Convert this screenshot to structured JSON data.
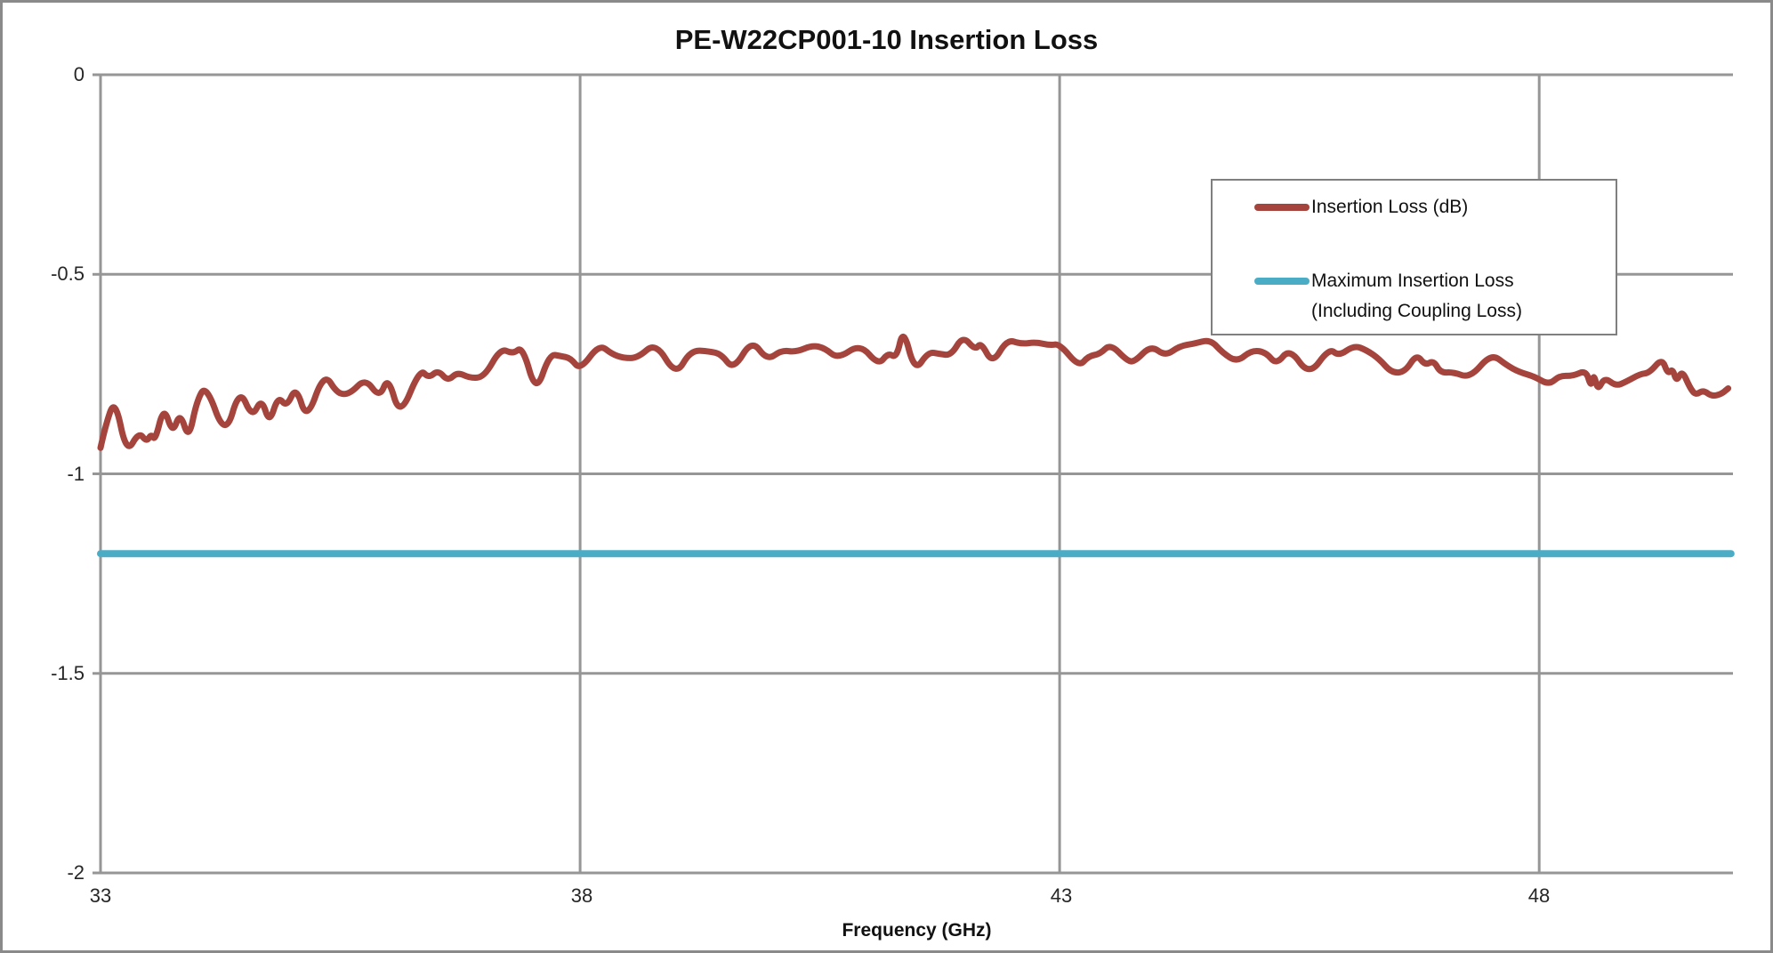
{
  "title": "PE-W22CP001-10 Insertion Loss",
  "x_axis": {
    "label": "Frequency (GHz)",
    "ticks": [
      "33",
      "38",
      "43",
      "48"
    ]
  },
  "y_axis": {
    "ticks": [
      "0",
      "-0.5",
      "-1",
      "-1.5",
      "-2"
    ]
  },
  "legend": {
    "entries": [
      {
        "lines": [
          "Insertion Loss (dB)"
        ]
      },
      {
        "lines": [
          "Maximum Insertion Loss",
          "(Including Coupling Loss)"
        ]
      }
    ]
  },
  "colors": {
    "insertion_loss_line": "#A5443C",
    "max_insertion_loss_line": "#4BACC6",
    "gridline": "#969696",
    "border": "#8A8A8A"
  },
  "chart_data": {
    "type": "line",
    "title": "PE-W22CP001-10 Insertion Loss",
    "xlabel": "Frequency (GHz)",
    "ylabel": "",
    "xlim": [
      33,
      50.02
    ],
    "ylim": [
      -2,
      0
    ],
    "xticks": [
      33,
      38,
      43,
      48
    ],
    "yticks": [
      0,
      -0.5,
      -1,
      -1.5,
      -2
    ],
    "grid": true,
    "legend_position": "upper right",
    "series": [
      {
        "name": "Insertion Loss (dB)",
        "color": "#A5443C",
        "points": [
          [
            33,
            -0.935
          ],
          [
            33.05,
            -0.88
          ],
          [
            33.15,
            -0.81
          ],
          [
            33.27,
            -0.95
          ],
          [
            33.4,
            -0.895
          ],
          [
            33.48,
            -0.92
          ],
          [
            33.53,
            -0.9
          ],
          [
            33.57,
            -0.917
          ],
          [
            33.66,
            -0.83
          ],
          [
            33.75,
            -0.9
          ],
          [
            33.83,
            -0.845
          ],
          [
            33.92,
            -0.915
          ],
          [
            34,
            -0.82
          ],
          [
            34.1,
            -0.775
          ],
          [
            34.3,
            -0.91
          ],
          [
            34.45,
            -0.785
          ],
          [
            34.58,
            -0.86
          ],
          [
            34.68,
            -0.81
          ],
          [
            34.76,
            -0.875
          ],
          [
            34.85,
            -0.805
          ],
          [
            34.94,
            -0.833
          ],
          [
            35.04,
            -0.78
          ],
          [
            35.15,
            -0.868
          ],
          [
            35.33,
            -0.745
          ],
          [
            35.47,
            -0.8
          ],
          [
            35.6,
            -0.8
          ],
          [
            35.76,
            -0.76
          ],
          [
            35.91,
            -0.81
          ],
          [
            36,
            -0.755
          ],
          [
            36.12,
            -0.86
          ],
          [
            36.33,
            -0.737
          ],
          [
            36.42,
            -0.76
          ],
          [
            36.52,
            -0.74
          ],
          [
            36.62,
            -0.768
          ],
          [
            36.72,
            -0.745
          ],
          [
            36.85,
            -0.76
          ],
          [
            37,
            -0.758
          ],
          [
            37.17,
            -0.685
          ],
          [
            37.3,
            -0.7
          ],
          [
            37.4,
            -0.68
          ],
          [
            37.54,
            -0.8
          ],
          [
            37.68,
            -0.7
          ],
          [
            37.8,
            -0.705
          ],
          [
            37.9,
            -0.71
          ],
          [
            38,
            -0.74
          ],
          [
            38.2,
            -0.675
          ],
          [
            38.33,
            -0.7
          ],
          [
            38.45,
            -0.71
          ],
          [
            38.6,
            -0.71
          ],
          [
            38.79,
            -0.67
          ],
          [
            39,
            -0.755
          ],
          [
            39.15,
            -0.69
          ],
          [
            39.35,
            -0.693
          ],
          [
            39.47,
            -0.7
          ],
          [
            39.6,
            -0.74
          ],
          [
            39.79,
            -0.663
          ],
          [
            39.95,
            -0.716
          ],
          [
            40.1,
            -0.69
          ],
          [
            40.25,
            -0.695
          ],
          [
            40.42,
            -0.678
          ],
          [
            40.55,
            -0.685
          ],
          [
            40.69,
            -0.712
          ],
          [
            40.92,
            -0.674
          ],
          [
            41.11,
            -0.728
          ],
          [
            41.21,
            -0.697
          ],
          [
            41.3,
            -0.71
          ],
          [
            41.37,
            -0.634
          ],
          [
            41.49,
            -0.745
          ],
          [
            41.63,
            -0.694
          ],
          [
            41.75,
            -0.7
          ],
          [
            41.87,
            -0.703
          ],
          [
            41.99,
            -0.654
          ],
          [
            42.12,
            -0.69
          ],
          [
            42.18,
            -0.67
          ],
          [
            42.3,
            -0.725
          ],
          [
            42.45,
            -0.663
          ],
          [
            42.6,
            -0.675
          ],
          [
            42.75,
            -0.67
          ],
          [
            42.9,
            -0.678
          ],
          [
            43,
            -0.674
          ],
          [
            43.2,
            -0.732
          ],
          [
            43.3,
            -0.705
          ],
          [
            43.42,
            -0.7
          ],
          [
            43.53,
            -0.674
          ],
          [
            43.7,
            -0.716
          ],
          [
            43.78,
            -0.72
          ],
          [
            43.95,
            -0.678
          ],
          [
            44.1,
            -0.705
          ],
          [
            44.25,
            -0.68
          ],
          [
            44.4,
            -0.674
          ],
          [
            44.57,
            -0.663
          ],
          [
            44.7,
            -0.697
          ],
          [
            44.85,
            -0.72
          ],
          [
            45,
            -0.69
          ],
          [
            45.15,
            -0.695
          ],
          [
            45.26,
            -0.727
          ],
          [
            45.4,
            -0.685
          ],
          [
            45.6,
            -0.755
          ],
          [
            45.81,
            -0.685
          ],
          [
            45.91,
            -0.705
          ],
          [
            46.07,
            -0.678
          ],
          [
            46.2,
            -0.69
          ],
          [
            46.33,
            -0.712
          ],
          [
            46.46,
            -0.747
          ],
          [
            46.6,
            -0.745
          ],
          [
            46.72,
            -0.7
          ],
          [
            46.81,
            -0.728
          ],
          [
            46.9,
            -0.716
          ],
          [
            46.97,
            -0.747
          ],
          [
            47.1,
            -0.745
          ],
          [
            47.28,
            -0.76
          ],
          [
            47.5,
            -0.698
          ],
          [
            47.66,
            -0.728
          ],
          [
            47.79,
            -0.745
          ],
          [
            47.95,
            -0.756
          ],
          [
            48.1,
            -0.777
          ],
          [
            48.21,
            -0.754
          ],
          [
            48.35,
            -0.755
          ],
          [
            48.49,
            -0.74
          ],
          [
            48.54,
            -0.784
          ],
          [
            48.57,
            -0.748
          ],
          [
            48.61,
            -0.792
          ],
          [
            48.68,
            -0.758
          ],
          [
            48.8,
            -0.78
          ],
          [
            48.9,
            -0.77
          ],
          [
            49.05,
            -0.75
          ],
          [
            49.15,
            -0.747
          ],
          [
            49.28,
            -0.71
          ],
          [
            49.34,
            -0.75
          ],
          [
            49.39,
            -0.736
          ],
          [
            49.43,
            -0.77
          ],
          [
            49.49,
            -0.74
          ],
          [
            49.57,
            -0.784
          ],
          [
            49.63,
            -0.803
          ],
          [
            49.71,
            -0.79
          ],
          [
            49.8,
            -0.806
          ],
          [
            49.9,
            -0.8
          ],
          [
            49.97,
            -0.786
          ]
        ]
      },
      {
        "name": "Maximum Insertion Loss (Including Coupling Loss)",
        "color": "#4BACC6",
        "points": [
          [
            33,
            -1.2
          ],
          [
            50,
            -1.2
          ]
        ]
      }
    ]
  }
}
